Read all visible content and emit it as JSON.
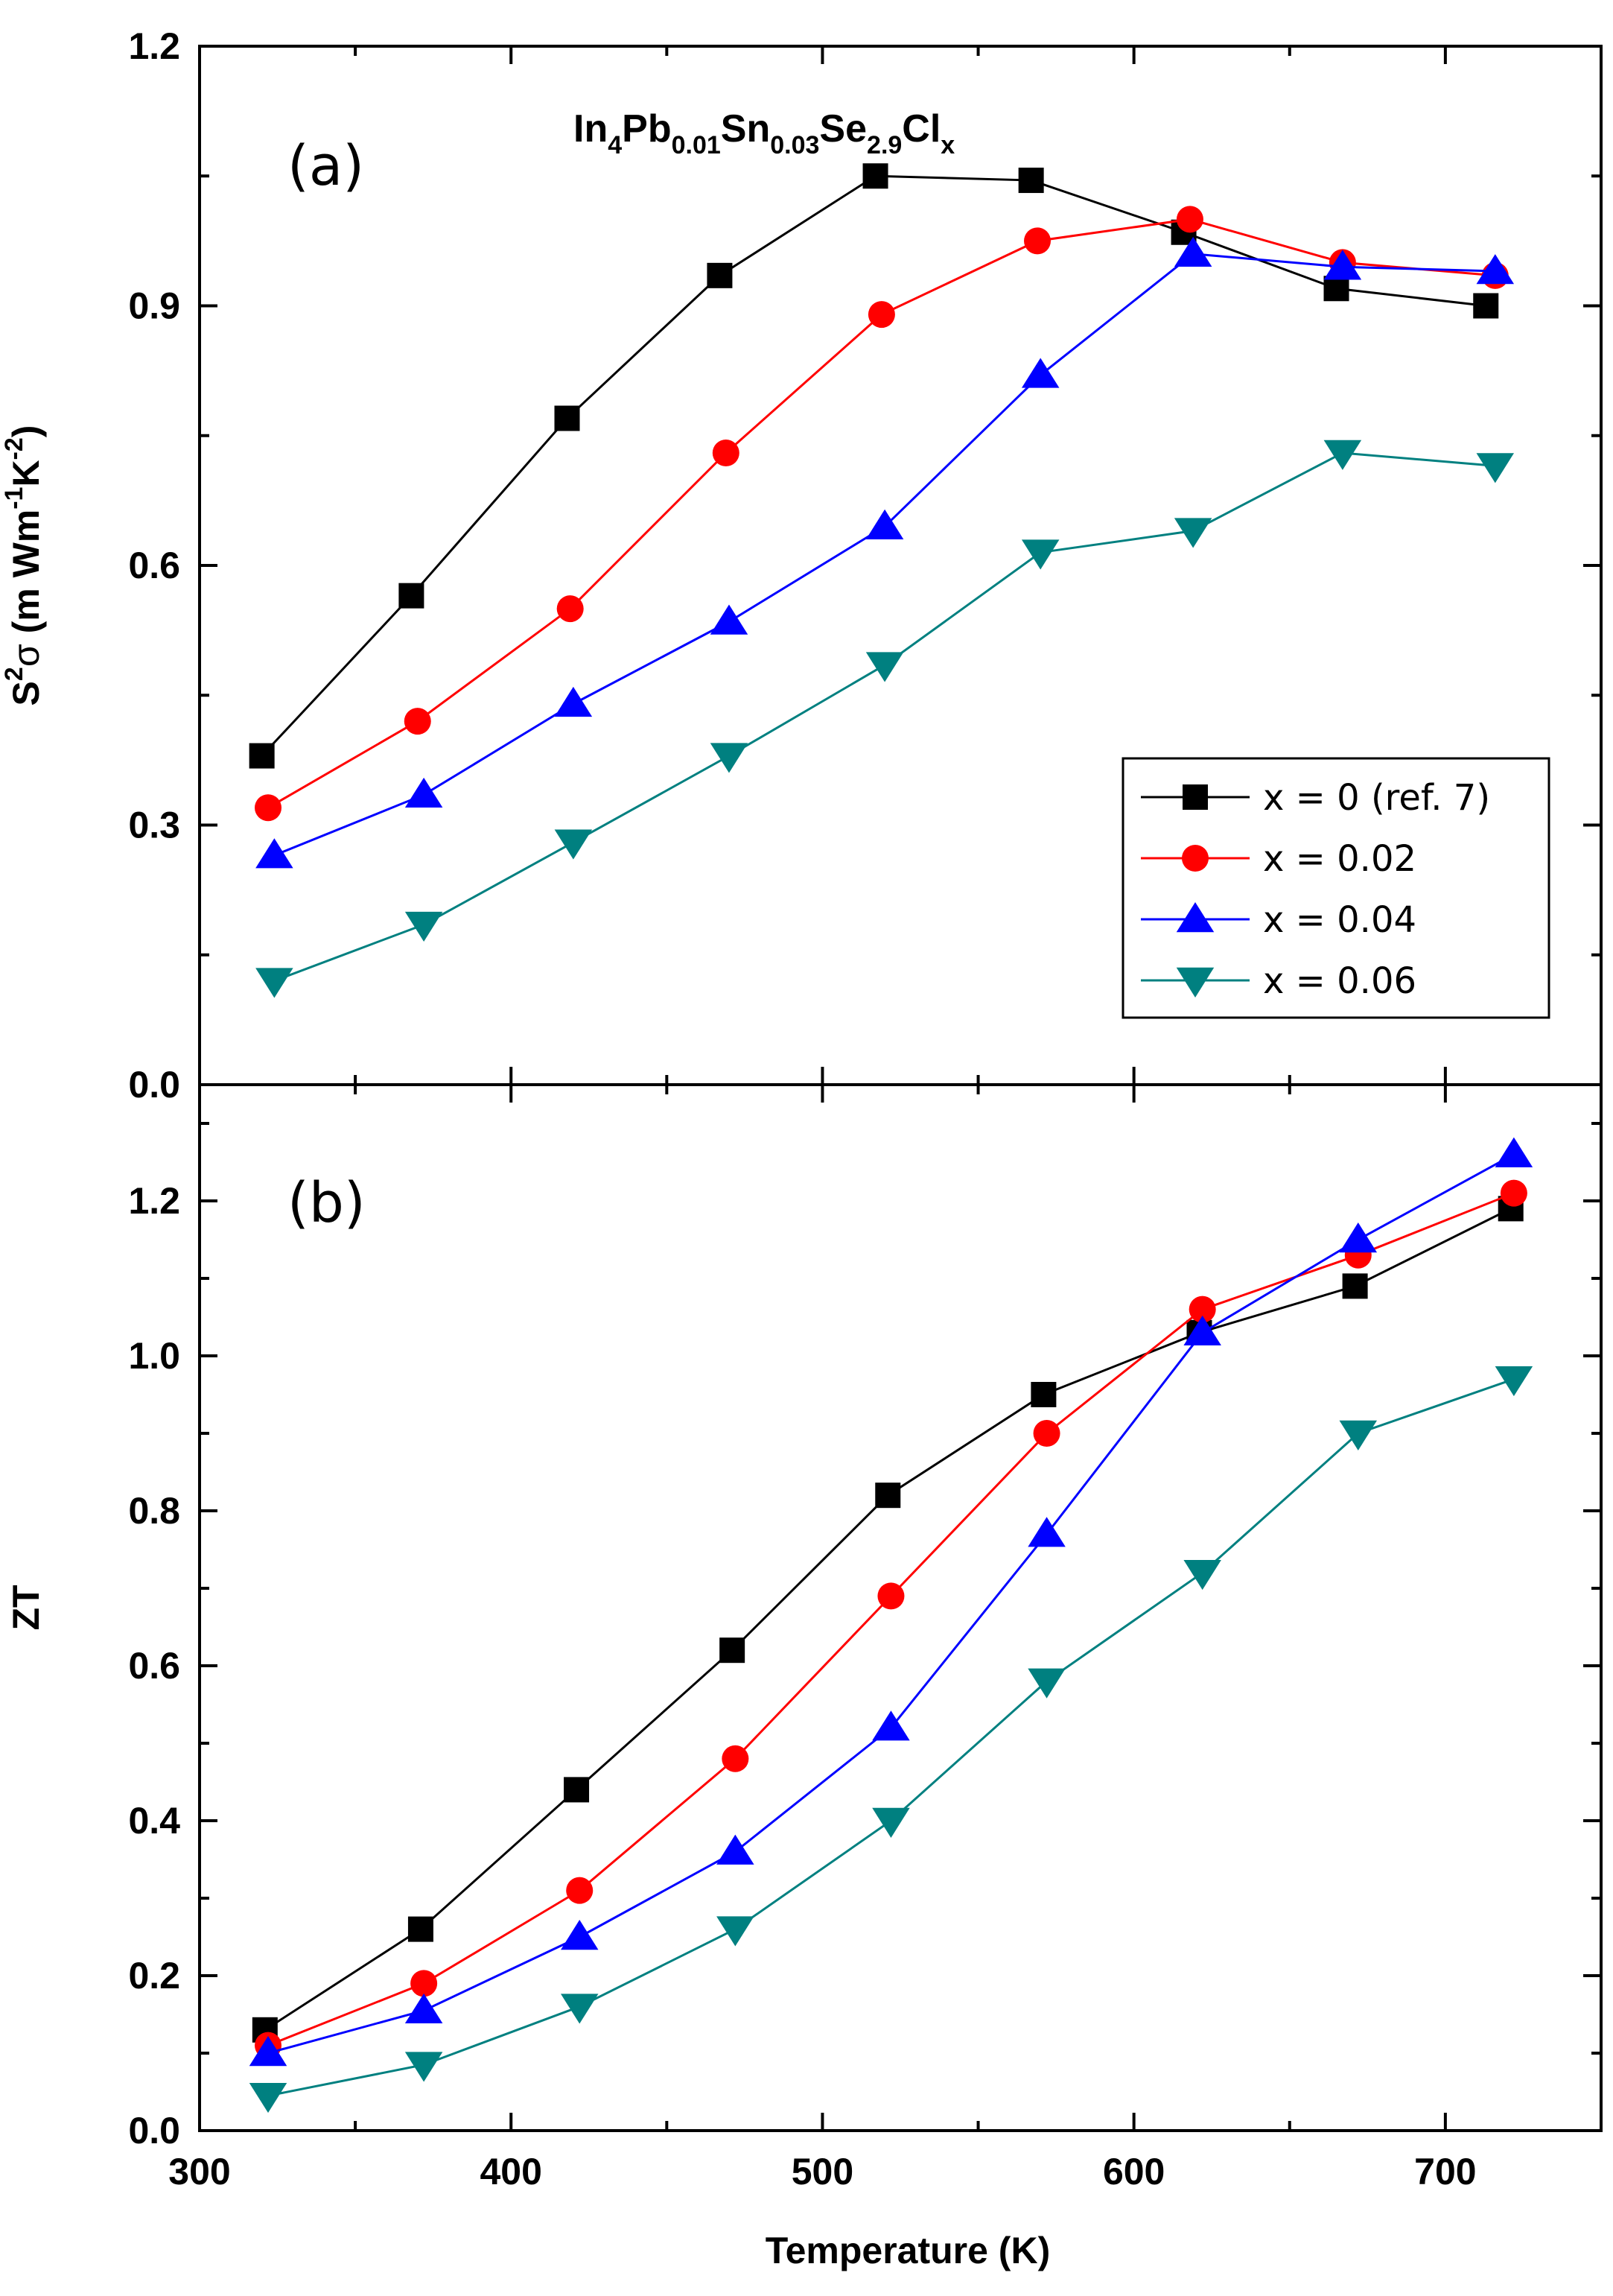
{
  "chart_data": {
    "type": "line",
    "xlabel": "Temperature (K)",
    "xlim": [
      300,
      750
    ],
    "xticks": [
      300,
      400,
      500,
      600,
      700
    ],
    "series_styles": [
      {
        "name": "x = 0 (ref. 7)",
        "color": "#000000",
        "marker": "square"
      },
      {
        "name": "x = 0.02",
        "color": "#ff0000",
        "marker": "circle"
      },
      {
        "name": "x = 0.04",
        "color": "#0000ff",
        "marker": "triangle-up"
      },
      {
        "name": "x = 0.06",
        "color": "#008080",
        "marker": "triangle-down"
      }
    ],
    "panels": [
      {
        "id": "a",
        "label": "(a)",
        "ylabel": {
          "prefix": "S",
          "sup1": "2",
          "sym": "σ",
          "mid": " (m Wm",
          "sup2": "-1",
          "k": "K",
          "sup3": "-2",
          "close": ")"
        },
        "ylim": [
          0,
          1.2
        ],
        "yticks": [
          "0.0",
          "0.3",
          "0.6",
          "0.9",
          "1.2"
        ],
        "formula": [
          {
            "t": "In",
            "sub": false
          },
          {
            "t": "4",
            "sub": true
          },
          {
            "t": "Pb",
            "sub": false
          },
          {
            "t": "0.01",
            "sub": true
          },
          {
            "t": "Sn",
            "sub": false
          },
          {
            "t": "0.03",
            "sub": true
          },
          {
            "t": "Se",
            "sub": false
          },
          {
            "t": "2.9",
            "sub": true
          },
          {
            "t": "Cl",
            "sub": false
          },
          {
            "t": "x",
            "sub": true
          }
        ],
        "legend": [
          "x = 0 (ref. 7)",
          "x = 0.02",
          "x = 0.04",
          "x = 0.06"
        ],
        "series": [
          {
            "name": "x = 0 (ref. 7)",
            "x": [
              320,
              368,
              418,
              467,
              517,
              567,
              616,
              665,
              713
            ],
            "y": [
              0.38,
              0.565,
              0.77,
              0.935,
              1.05,
              1.045,
              0.985,
              0.92,
              0.9
            ]
          },
          {
            "name": "x = 0.02",
            "x": [
              322,
              370,
              419,
              469,
              519,
              569,
              618,
              667,
              716
            ],
            "y": [
              0.32,
              0.42,
              0.55,
              0.73,
              0.89,
              0.975,
              1.0,
              0.95,
              0.935
            ]
          },
          {
            "name": "x = 0.04",
            "x": [
              324,
              372,
              420,
              470,
              520,
              570,
              619,
              667,
              716
            ],
            "y": [
              0.265,
              0.335,
              0.44,
              0.535,
              0.645,
              0.82,
              0.96,
              0.945,
              0.94
            ]
          },
          {
            "name": "x = 0.06",
            "x": [
              324,
              372,
              420,
              470,
              520,
              570,
              619,
              667,
              716
            ],
            "y": [
              0.12,
              0.185,
              0.28,
              0.38,
              0.485,
              0.615,
              0.64,
              0.73,
              0.715
            ]
          }
        ]
      },
      {
        "id": "b",
        "label": "(b)",
        "ylabel": "ZT",
        "ylim": [
          0,
          1.35
        ],
        "yticks": [
          "0.0",
          "0.2",
          "0.4",
          "0.6",
          "0.8",
          "1.0",
          "1.2"
        ],
        "series": [
          {
            "name": "x = 0 (ref. 7)",
            "x": [
              321,
              371,
              421,
              471,
              521,
              571,
              621,
              671,
              721
            ],
            "y": [
              0.13,
              0.26,
              0.44,
              0.62,
              0.82,
              0.95,
              1.03,
              1.09,
              1.19
            ]
          },
          {
            "name": "x = 0.02",
            "x": [
              322,
              372,
              422,
              472,
              522,
              572,
              622,
              672,
              722
            ],
            "y": [
              0.11,
              0.19,
              0.31,
              0.48,
              0.69,
              0.9,
              1.06,
              1.13,
              1.21
            ]
          },
          {
            "name": "x = 0.04",
            "x": [
              322,
              372,
              422,
              472,
              522,
              572,
              622,
              672,
              722
            ],
            "y": [
              0.1,
              0.155,
              0.25,
              0.36,
              0.52,
              0.77,
              1.03,
              1.15,
              1.26
            ]
          },
          {
            "name": "x = 0.06",
            "x": [
              322,
              372,
              422,
              472,
              522,
              572,
              622,
              672,
              722
            ],
            "y": [
              0.045,
              0.085,
              0.16,
              0.26,
              0.4,
              0.58,
              0.72,
              0.9,
              0.97
            ]
          }
        ]
      }
    ]
  }
}
